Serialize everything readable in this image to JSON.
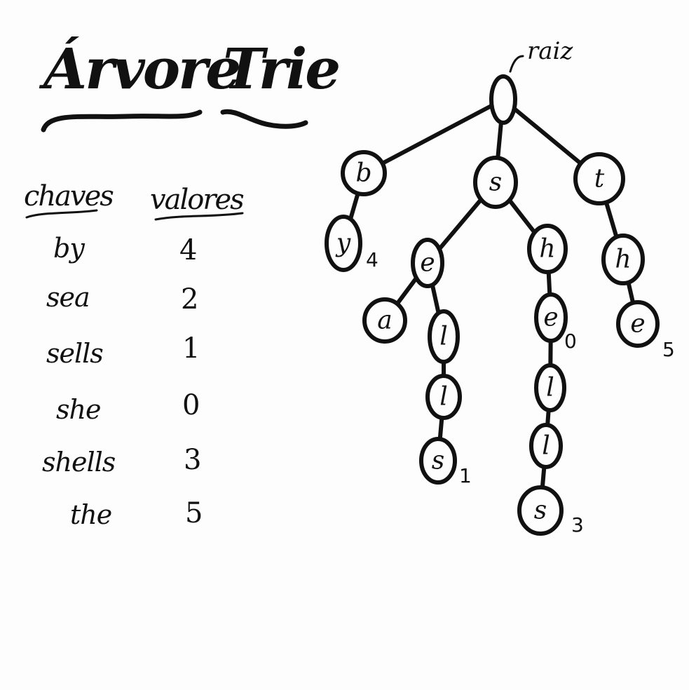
{
  "title": {
    "word1": "Árvore",
    "word2": "Trie"
  },
  "table": {
    "key_header": "chaves",
    "value_header": "valores",
    "rows": [
      {
        "key": "by",
        "value": "4"
      },
      {
        "key": "sea",
        "value": "2"
      },
      {
        "key": "sells",
        "value": "1"
      },
      {
        "key": "she",
        "value": "0"
      },
      {
        "key": "shells",
        "value": "3"
      },
      {
        "key": "the",
        "value": "5"
      }
    ]
  },
  "tree": {
    "root_annotation": "raiz",
    "nodes": [
      {
        "id": "root",
        "letter": "",
        "parent": null,
        "value": ""
      },
      {
        "id": "b",
        "letter": "b",
        "parent": "root",
        "value": ""
      },
      {
        "id": "by",
        "letter": "y",
        "parent": "b",
        "value": "4"
      },
      {
        "id": "s",
        "letter": "s",
        "parent": "root",
        "value": ""
      },
      {
        "id": "se",
        "letter": "e",
        "parent": "s",
        "value": ""
      },
      {
        "id": "sea",
        "letter": "a",
        "parent": "se",
        "value": "2"
      },
      {
        "id": "sel",
        "letter": "l",
        "parent": "se",
        "value": ""
      },
      {
        "id": "sell",
        "letter": "l",
        "parent": "sel",
        "value": ""
      },
      {
        "id": "sells",
        "letter": "s",
        "parent": "sell",
        "value": "1"
      },
      {
        "id": "sh",
        "letter": "h",
        "parent": "s",
        "value": ""
      },
      {
        "id": "she",
        "letter": "e",
        "parent": "sh",
        "value": "0"
      },
      {
        "id": "shel",
        "letter": "l",
        "parent": "she",
        "value": ""
      },
      {
        "id": "shell",
        "letter": "l",
        "parent": "shel",
        "value": ""
      },
      {
        "id": "shells",
        "letter": "s",
        "parent": "shell",
        "value": "3"
      },
      {
        "id": "t",
        "letter": "t",
        "parent": "root",
        "value": ""
      },
      {
        "id": "th",
        "letter": "h",
        "parent": "t",
        "value": ""
      },
      {
        "id": "the",
        "letter": "e",
        "parent": "th",
        "value": "5"
      }
    ]
  }
}
